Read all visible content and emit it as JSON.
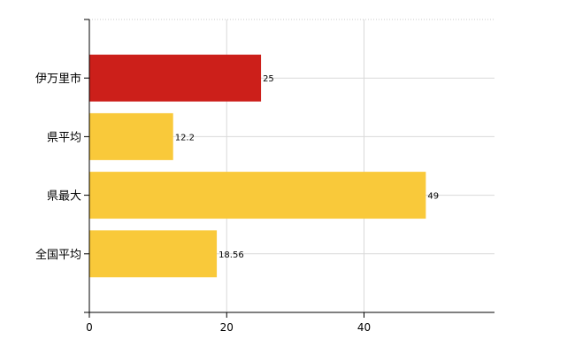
{
  "chart_data": {
    "type": "bar",
    "orientation": "horizontal",
    "categories": [
      "伊万里市",
      "県平均",
      "県最大",
      "全国平均"
    ],
    "values": [
      25,
      12.2,
      49,
      18.56
    ],
    "value_labels": [
      "25",
      "12.2",
      "49",
      "18.56"
    ],
    "bar_colors": [
      "#cc1f1a",
      "#f9c93a",
      "#f9c93a",
      "#f9c93a"
    ],
    "highlight_color": "#cc1f1a",
    "default_color": "#f9c93a",
    "x_ticks": [
      0,
      20,
      40
    ],
    "x_tick_labels": [
      "0",
      "20",
      "40"
    ],
    "xlim": [
      0,
      59
    ],
    "title": "",
    "xlabel": "",
    "ylabel": "",
    "grid": true,
    "legend": "none"
  }
}
